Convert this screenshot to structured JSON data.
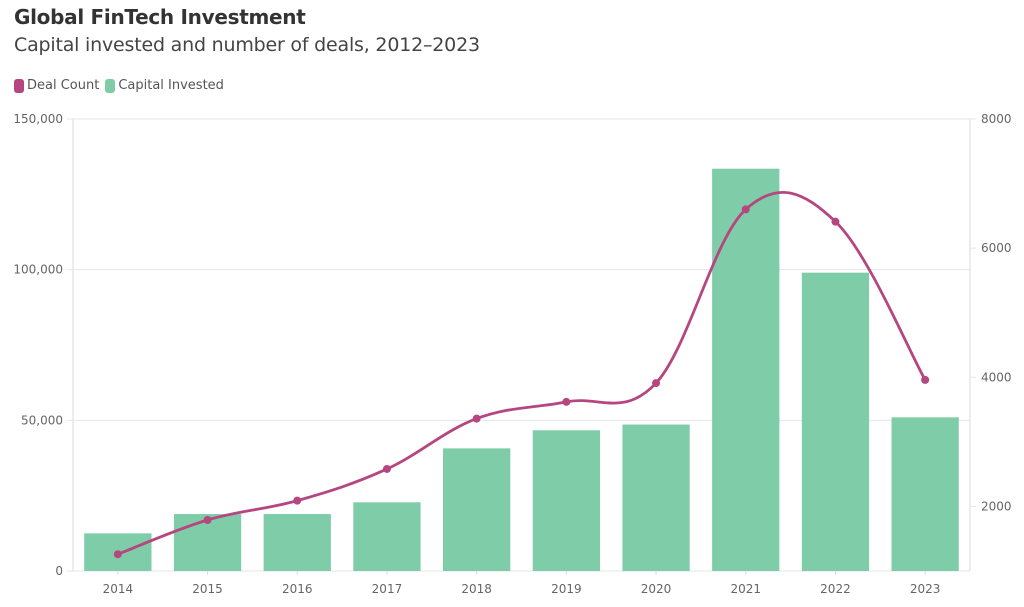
{
  "header": {
    "title": "Global FinTech Investment",
    "subtitle": "Capital invested and number of deals, 2012–2023"
  },
  "legend": [
    {
      "label": "Deal Count",
      "color": "#b5467f"
    },
    {
      "label": "Capital Invested",
      "color": "#7fcda8"
    }
  ],
  "chart_data": {
    "type": "bar",
    "title": "Global FinTech Investment",
    "subtitle": "Capital invested and number of deals, 2012–2023",
    "categories": [
      "2014",
      "2015",
      "2016",
      "2017",
      "2018",
      "2019",
      "2020",
      "2021",
      "2022",
      "2023"
    ],
    "series": [
      {
        "name": "Capital Invested",
        "type": "bar",
        "axis": "left",
        "color": "#7fcda8",
        "values": [
          12500,
          18900,
          18900,
          22800,
          40700,
          46700,
          48600,
          133500,
          99000,
          51000
        ]
      },
      {
        "name": "Deal Count",
        "type": "line",
        "axis": "right",
        "color": "#b5467f",
        "values": [
          1260,
          1790,
          2090,
          2580,
          3360,
          3620,
          3910,
          6600,
          6410,
          3960
        ]
      }
    ],
    "left_axis": {
      "ylim": [
        0,
        150000
      ],
      "ticks": [
        0,
        50000,
        100000,
        150000
      ],
      "tick_labels": [
        "0",
        "50,000",
        "100,000",
        "150,000"
      ]
    },
    "right_axis": {
      "ylim": [
        1000,
        8000
      ],
      "ticks": [
        2000,
        4000,
        6000,
        8000
      ],
      "tick_labels": [
        "2000",
        "4000",
        "6000",
        "8000"
      ]
    },
    "xlabel": "",
    "ylabel": "",
    "grid": true,
    "legend_position": "top-left"
  }
}
